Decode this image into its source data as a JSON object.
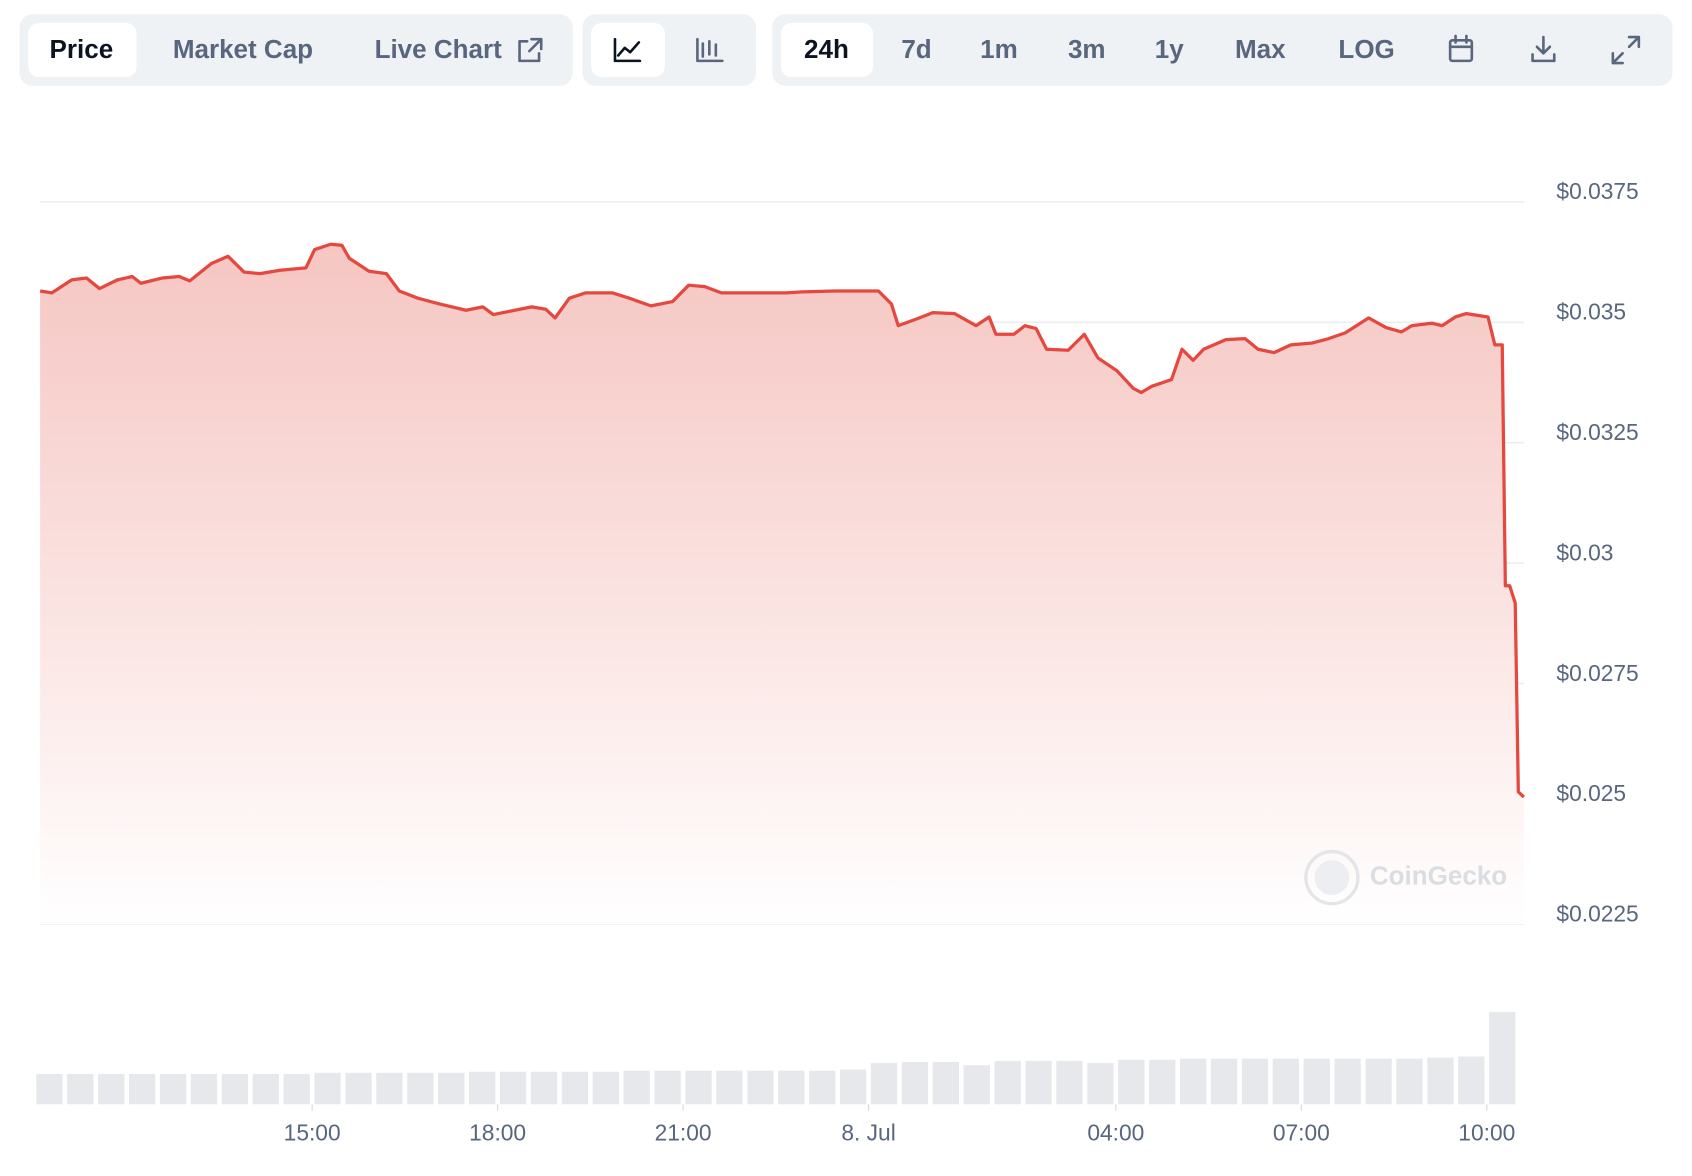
{
  "toolbar": {
    "tabs": [
      "Price",
      "Market Cap",
      "Live Chart"
    ],
    "ranges": [
      "24h",
      "7d",
      "1m",
      "3m",
      "1y",
      "Max",
      "LOG"
    ]
  },
  "chart_data": {
    "type": "line",
    "color": "#e5483f",
    "watermark": "CoinGecko",
    "grid": true,
    "x": [
      10.6,
      10.79,
      11.11,
      11.35,
      11.56,
      11.85,
      12.09,
      12.23,
      12.58,
      12.85,
      13.02,
      13.37,
      13.64,
      13.9,
      14.16,
      14.48,
      14.9,
      15.04,
      15.3,
      15.48,
      15.6,
      15.92,
      16.2,
      16.41,
      16.71,
      17.06,
      17.49,
      17.76,
      17.93,
      18.28,
      18.55,
      18.78,
      18.93,
      19.16,
      19.42,
      19.86,
      20.13,
      20.48,
      20.83,
      21.09,
      21.35,
      21.62,
      22.23,
      22.67,
      22.93,
      23.46,
      24.16,
      24.37,
      24.48,
      24.78,
      25.04,
      25.39,
      25.74,
      25.95,
      26.06,
      26.35,
      26.53,
      26.71,
      26.88,
      27.23,
      27.49,
      27.71,
      28.02,
      28.28,
      28.41,
      28.58,
      28.9,
      29.07,
      29.25,
      29.42,
      29.78,
      30.09,
      30.3,
      30.56,
      30.83,
      31.18,
      31.44,
      31.71,
      32.09,
      32.37,
      32.62,
      32.79,
      33.11,
      33.28,
      33.49,
      33.67,
      34.02,
      34.13,
      34.25,
      34.3,
      34.37,
      34.46,
      34.51,
      34.6
    ],
    "values": [
      0.03565,
      0.03561,
      0.03588,
      0.03592,
      0.0357,
      0.03588,
      0.03595,
      0.03581,
      0.03592,
      0.03595,
      0.03586,
      0.03622,
      0.03637,
      0.03604,
      0.03601,
      0.03608,
      0.03613,
      0.03651,
      0.03662,
      0.0366,
      0.03633,
      0.03606,
      0.03601,
      0.03565,
      0.0355,
      0.03538,
      0.03525,
      0.03532,
      0.03516,
      0.03525,
      0.03532,
      0.03527,
      0.03509,
      0.0355,
      0.03561,
      0.03561,
      0.0355,
      0.03534,
      0.03543,
      0.03577,
      0.03574,
      0.03561,
      0.03561,
      0.03561,
      0.03563,
      0.03565,
      0.03565,
      0.03538,
      0.03493,
      0.03507,
      0.0352,
      0.03518,
      0.03493,
      0.03511,
      0.03475,
      0.03475,
      0.03493,
      0.03487,
      0.03444,
      0.03442,
      0.03475,
      0.03426,
      0.03399,
      0.03363,
      0.03354,
      0.03367,
      0.03381,
      0.03444,
      0.03421,
      0.03444,
      0.03464,
      0.03466,
      0.03444,
      0.03437,
      0.03453,
      0.03457,
      0.03466,
      0.03478,
      0.03509,
      0.03489,
      0.0348,
      0.03493,
      0.03498,
      0.03493,
      0.03511,
      0.03518,
      0.03511,
      0.03453,
      0.03453,
      0.02953,
      0.02953,
      0.02917,
      0.02525,
      0.02514
    ],
    "xlim": [
      10.6,
      34.6
    ],
    "xticks": [
      {
        "value": 15,
        "label": "15:00"
      },
      {
        "value": 18,
        "label": "18:00"
      },
      {
        "value": 21,
        "label": "21:00"
      },
      {
        "value": 24,
        "label": "8. Jul"
      },
      {
        "value": 28,
        "label": "04:00"
      },
      {
        "value": 31,
        "label": "07:00"
      },
      {
        "value": 34,
        "label": "10:00"
      }
    ],
    "ylim": [
      0.0225,
      0.0375
    ],
    "yticks": [
      {
        "value": 0.0375,
        "label": "$0.0375"
      },
      {
        "value": 0.035,
        "label": "$0.035"
      },
      {
        "value": 0.0325,
        "label": "$0.0325"
      },
      {
        "value": 0.03,
        "label": "$0.03"
      },
      {
        "value": 0.0275,
        "label": "$0.0275"
      },
      {
        "value": 0.025,
        "label": "$0.025"
      },
      {
        "value": 0.0225,
        "label": "$0.0225"
      }
    ],
    "volume": {
      "color": "#e6e8ec",
      "x": [
        10.75,
        11.25,
        11.75,
        12.25,
        12.75,
        13.25,
        13.75,
        14.25,
        14.75,
        15.25,
        15.75,
        16.25,
        16.75,
        17.25,
        17.75,
        18.25,
        18.75,
        19.25,
        19.75,
        20.25,
        20.75,
        21.25,
        21.75,
        22.25,
        22.75,
        23.25,
        23.75,
        24.25,
        24.75,
        25.25,
        25.75,
        26.25,
        26.75,
        27.25,
        27.75,
        28.25,
        28.75,
        29.25,
        29.75,
        30.25,
        30.75,
        31.25,
        31.75,
        32.25,
        32.75,
        33.25,
        33.75,
        34.25
      ],
      "values": [
        28,
        28,
        28,
        28,
        28,
        28,
        28,
        28,
        28,
        29,
        29,
        29,
        29,
        29,
        30,
        30,
        30,
        30,
        30,
        31,
        31,
        31,
        31,
        31,
        31,
        31,
        32,
        38,
        39,
        39,
        36,
        40,
        40,
        40,
        38,
        41,
        41,
        42,
        42,
        42,
        42,
        42,
        42,
        42,
        42,
        43,
        44,
        85
      ]
    }
  }
}
